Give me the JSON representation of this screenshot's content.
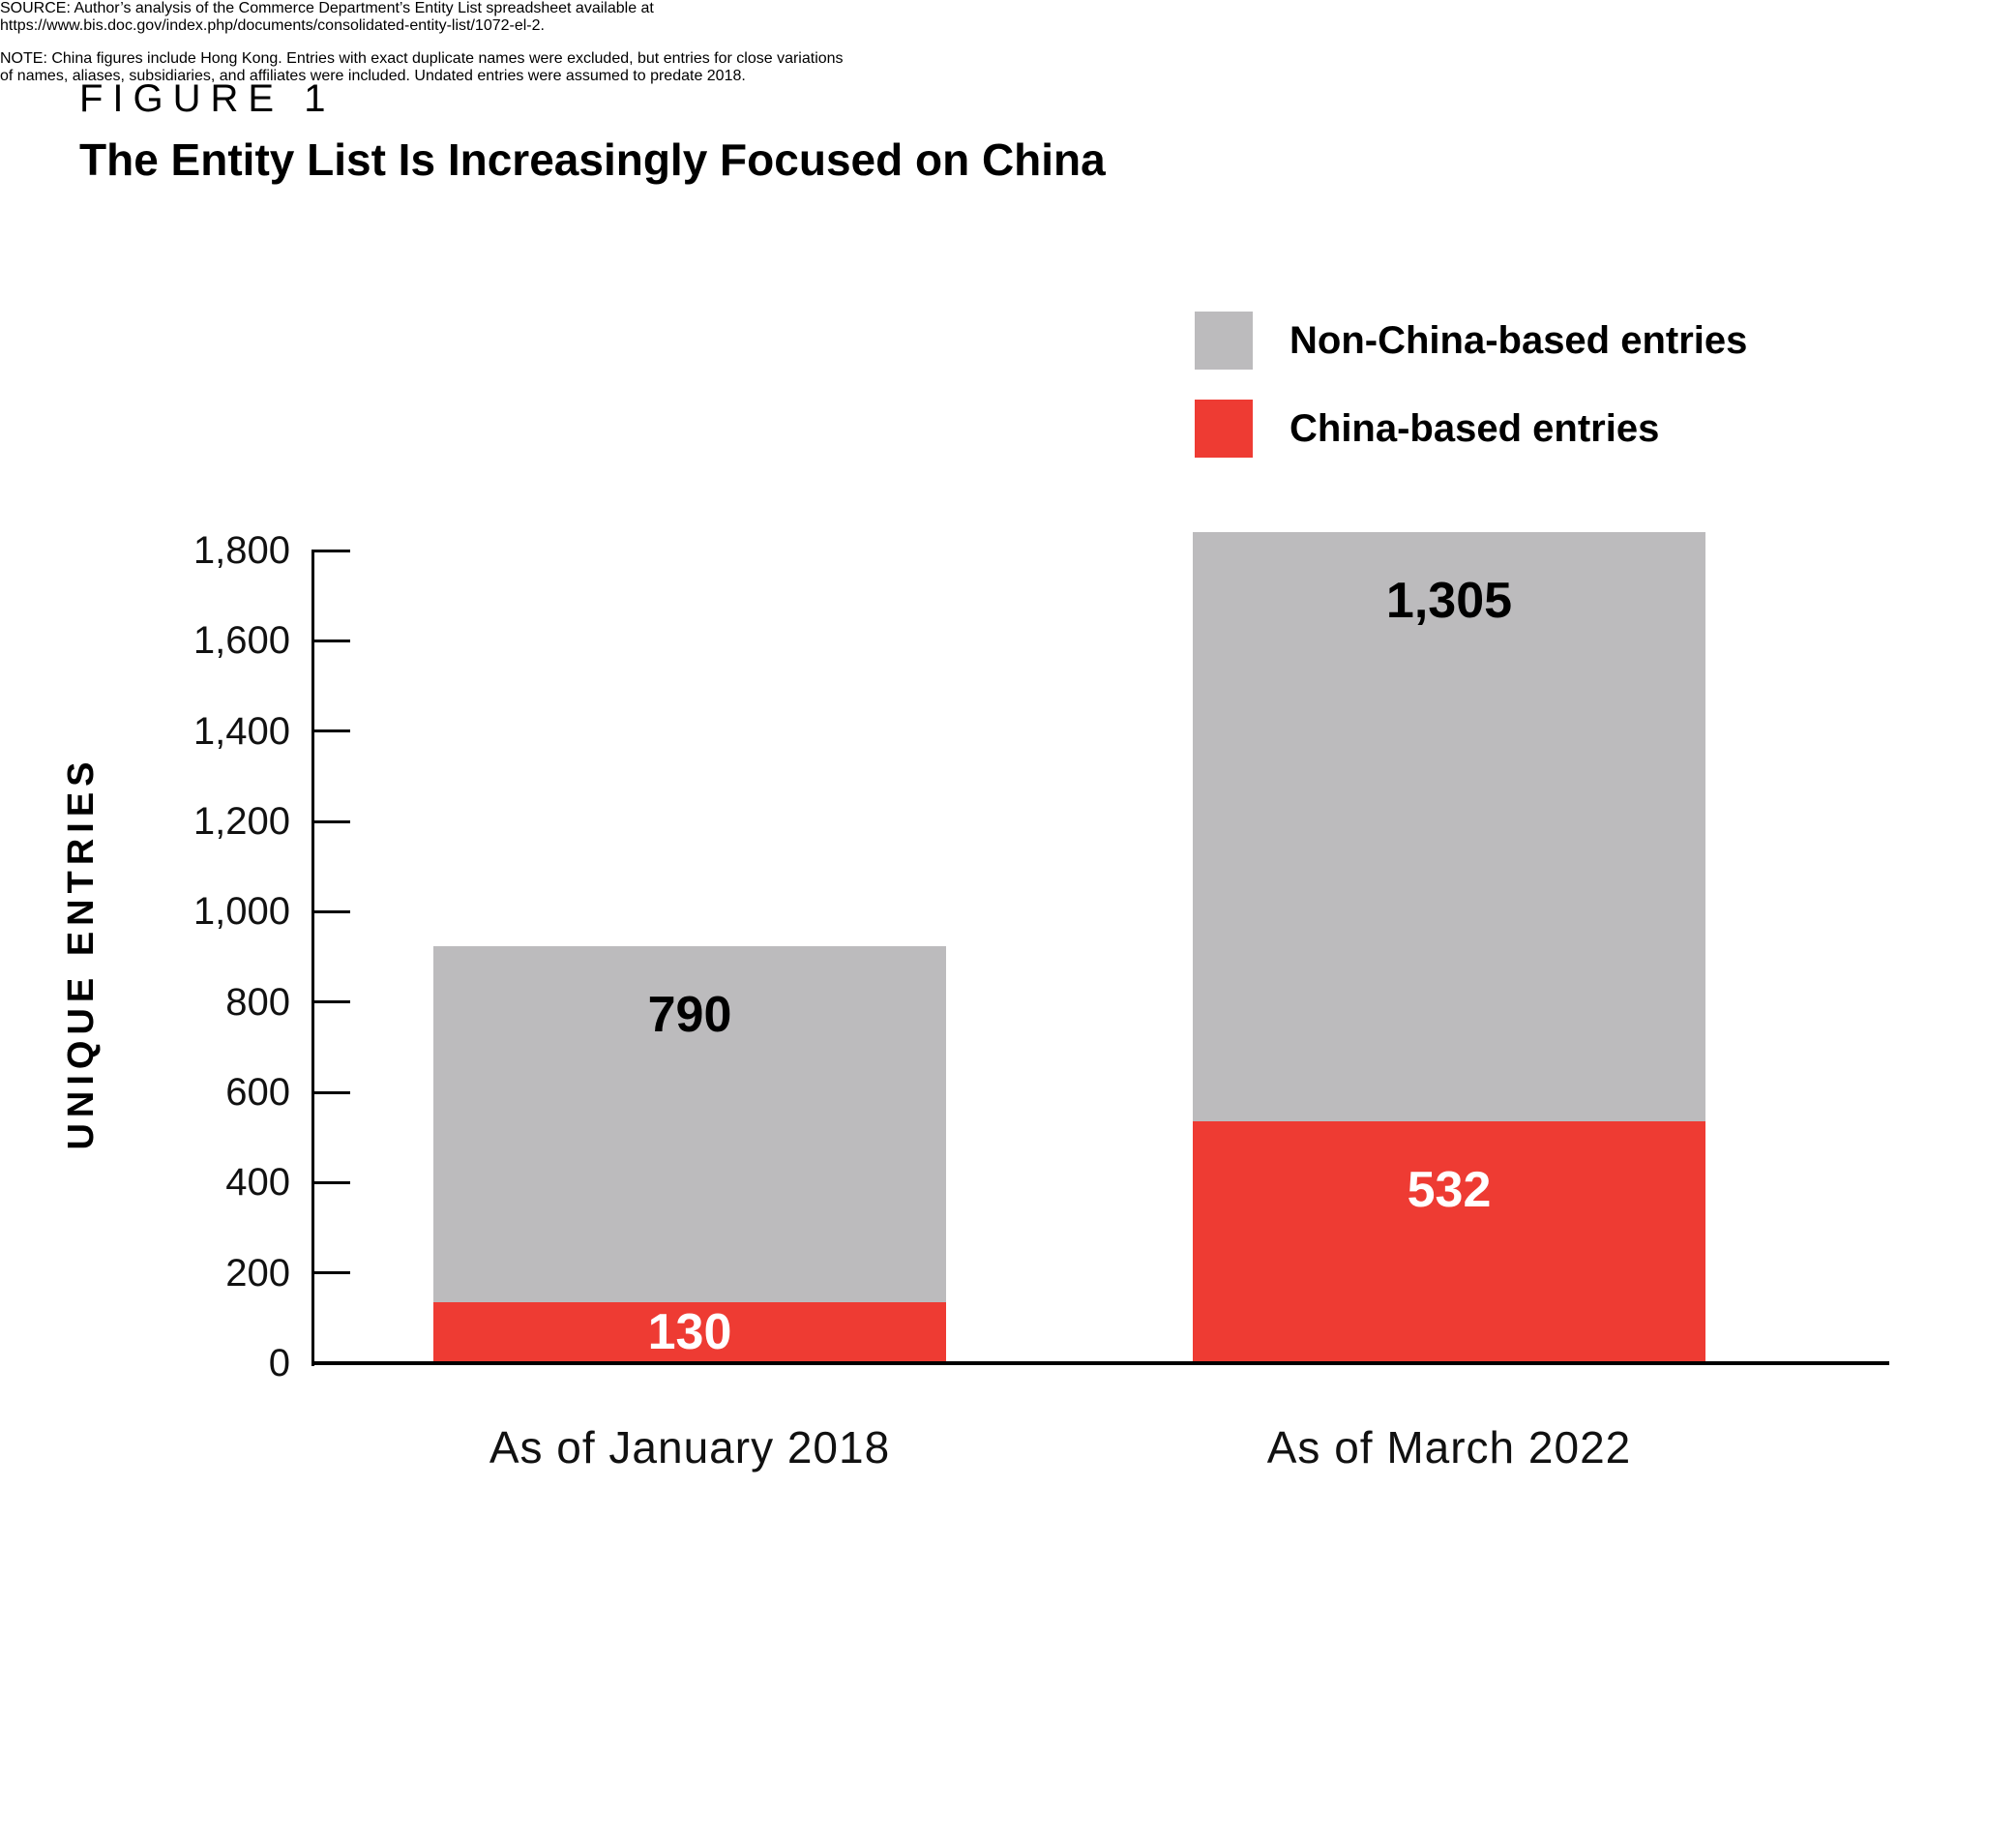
{
  "figure": {
    "label": "FIGURE 1",
    "title": "The Entity List Is Increasingly Focused on China"
  },
  "legend": {
    "items": [
      {
        "label": "Non-China-based entries",
        "color": "#BCBBBD"
      },
      {
        "label": "China-based entries",
        "color": "#EE3B33"
      }
    ]
  },
  "chart_data": {
    "type": "bar",
    "stacked": true,
    "title": "The Entity List Is Increasingly Focused on China",
    "categories": [
      "As of January 2018",
      "As of March 2022"
    ],
    "series": [
      {
        "name": "China-based entries",
        "color": "#EE3B33",
        "text_color": "#FFFFFF",
        "values": [
          130,
          532
        ],
        "labels": [
          "130",
          "532"
        ]
      },
      {
        "name": "Non-China-based entries",
        "color": "#BCBBBD",
        "text_color": "#000000",
        "values": [
          790,
          1305
        ],
        "labels": [
          "790",
          "1,305"
        ]
      }
    ],
    "totals": [
      920,
      1837
    ],
    "xlabel": "",
    "ylabel": "UNIQUE ENTRIES",
    "ylim": [
      0,
      1800
    ],
    "ytick_step": 200,
    "yticks": [
      "0",
      "200",
      "400",
      "600",
      "800",
      "1,000",
      "1,200",
      "1,400",
      "1,600",
      "1,800"
    ],
    "grid": false,
    "legend_position": "top-right",
    "axis_color": "#000000"
  },
  "source": {
    "lines": [
      "SOURCE: Author’s analysis of the Commerce Department’s Entity List spreadsheet available at",
      "https://www.bis.doc.gov/index.php/documents/consolidated-entity-list/1072-el-2."
    ]
  },
  "note": {
    "lines": [
      "NOTE: China figures include Hong Kong. Entries with exact duplicate names were excluded, but entries for close variations",
      "of names, aliases, subsidiaries, and affiliates were included. Undated entries were assumed to predate 2018."
    ]
  }
}
